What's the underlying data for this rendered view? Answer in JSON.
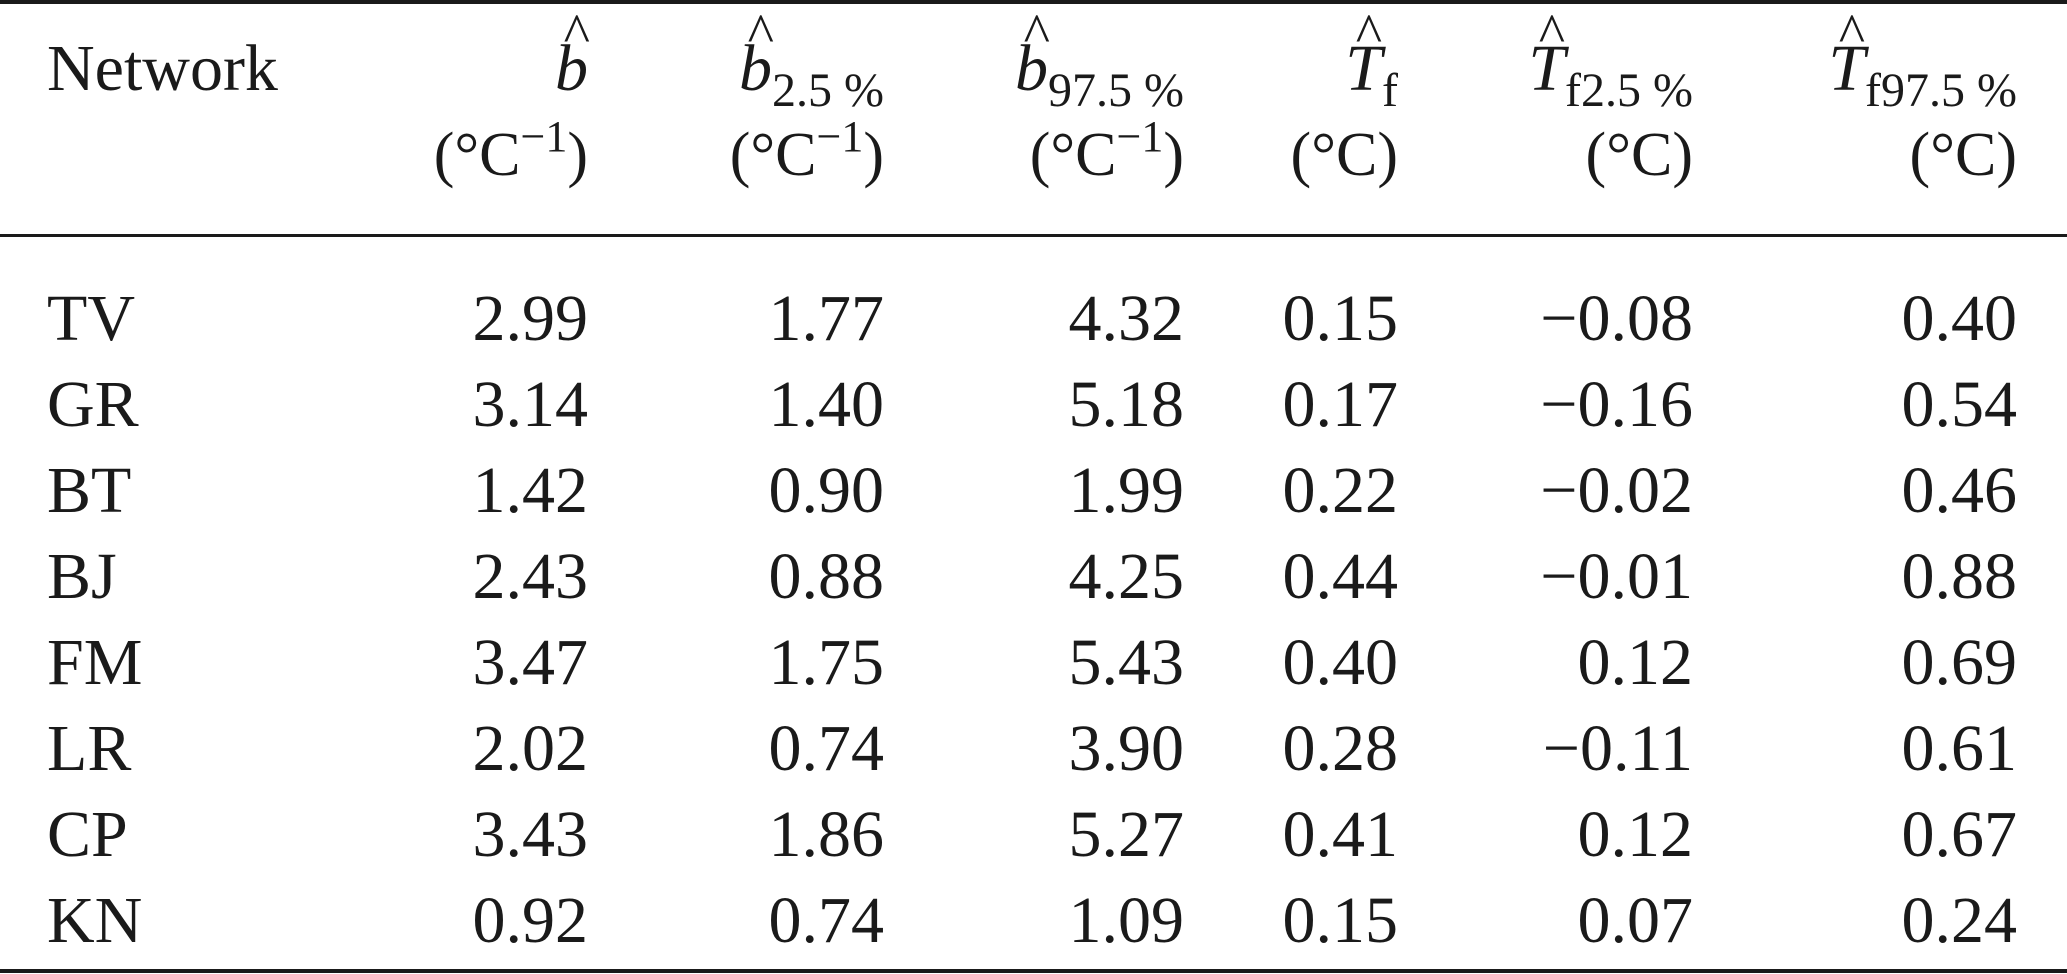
{
  "table": {
    "headers": [
      {
        "label": "Network",
        "symbol": "",
        "hat": "",
        "subscript": "",
        "unit": ""
      },
      {
        "label": "",
        "symbol": "b",
        "hat": "^",
        "subscript": "",
        "unit": "(°C",
        "unit_sup": "−1",
        "unit_close": ")"
      },
      {
        "label": "",
        "symbol": "b",
        "hat": "^",
        "subscript": "2.5 %",
        "unit": "(°C",
        "unit_sup": "−1",
        "unit_close": ")"
      },
      {
        "label": "",
        "symbol": "b",
        "hat": "^",
        "subscript": "97.5 %",
        "unit": "(°C",
        "unit_sup": "−1",
        "unit_close": ")"
      },
      {
        "label": "",
        "symbol": "T",
        "hat": "^",
        "subscript": "f",
        "unit": "(°C)",
        "unit_sup": "",
        "unit_close": ""
      },
      {
        "label": "",
        "symbol": "T",
        "hat": "^",
        "subscript": "f2.5 %",
        "unit": "(°C)",
        "unit_sup": "",
        "unit_close": ""
      },
      {
        "label": "",
        "symbol": "T",
        "hat": "^",
        "subscript": "f97.5 %",
        "unit": "(°C)",
        "unit_sup": "",
        "unit_close": ""
      }
    ],
    "rows": [
      [
        "TV",
        "2.99",
        "1.77",
        "4.32",
        "0.15",
        "−0.08",
        "0.40"
      ],
      [
        "GR",
        "3.14",
        "1.40",
        "5.18",
        "0.17",
        "−0.16",
        "0.54"
      ],
      [
        "BT",
        "1.42",
        "0.90",
        "1.99",
        "0.22",
        "−0.02",
        "0.46"
      ],
      [
        "BJ",
        "2.43",
        "0.88",
        "4.25",
        "0.44",
        "−0.01",
        "0.88"
      ],
      [
        "FM",
        "3.47",
        "1.75",
        "5.43",
        "0.40",
        "0.12",
        "0.69"
      ],
      [
        "LR",
        "2.02",
        "0.74",
        "3.90",
        "0.28",
        "−0.11",
        "0.61"
      ],
      [
        "CP",
        "3.43",
        "1.86",
        "5.27",
        "0.41",
        "0.12",
        "0.67"
      ],
      [
        "KN",
        "0.92",
        "0.74",
        "1.09",
        "0.15",
        "0.07",
        "0.24"
      ]
    ]
  }
}
